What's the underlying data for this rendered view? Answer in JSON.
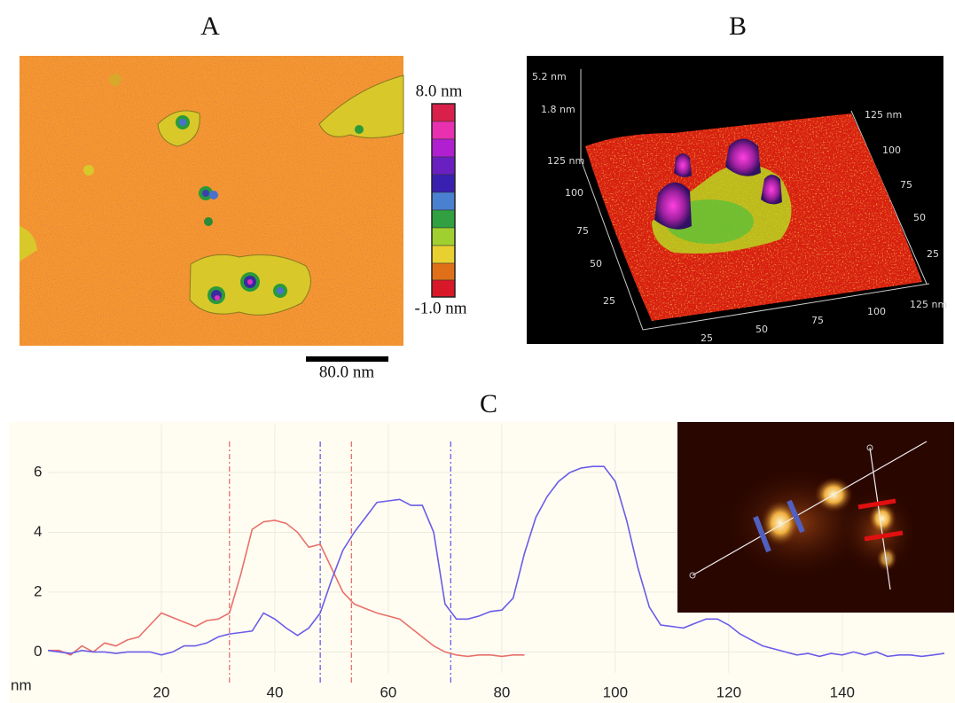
{
  "panels": {
    "a": {
      "label": "A",
      "colorbar_max": "8.0 nm",
      "colorbar_min": "-1.0 nm",
      "scale_bar": "80.0 nm"
    },
    "b": {
      "label": "B",
      "z_labels": [
        "5.2 nm",
        "1.8 nm"
      ],
      "left_labels": [
        "125 nm",
        "100",
        "75",
        "50",
        "25"
      ],
      "right_labels": [
        "125 nm",
        "100",
        "75",
        "50",
        "25"
      ],
      "bottom_labels": [
        "25",
        "50",
        "75",
        "100",
        "125 nm"
      ]
    },
    "c": {
      "label": "C"
    }
  },
  "chart_data": {
    "type": "line",
    "y_label": "nm",
    "xlim": [
      0,
      158
    ],
    "ylim": [
      -0.7,
      7.6
    ],
    "xticks": [
      20,
      40,
      60,
      80,
      100,
      120,
      140
    ],
    "yticks": [
      0,
      2,
      4,
      6
    ],
    "grid": true,
    "series": [
      {
        "color": "#e8706a",
        "x": [
          0,
          2,
          4,
          6,
          8,
          10,
          12,
          14,
          16,
          18,
          20,
          22,
          24,
          26,
          28,
          30,
          32,
          34,
          36,
          38,
          40,
          42,
          44,
          46,
          48,
          50,
          52,
          54,
          56,
          58,
          60,
          62,
          64,
          66,
          68,
          70,
          72,
          74,
          76,
          78,
          80,
          82,
          84
        ],
        "values": [
          0.05,
          0.05,
          -0.1,
          0.2,
          0,
          0.3,
          0.2,
          0.4,
          0.5,
          0.9,
          1.3,
          1.15,
          1.0,
          0.85,
          1.05,
          1.1,
          1.3,
          2.6,
          4.1,
          4.35,
          4.4,
          4.3,
          4.0,
          3.5,
          3.6,
          2.8,
          2.0,
          1.6,
          1.45,
          1.3,
          1.2,
          1.1,
          0.8,
          0.5,
          0.2,
          0,
          -0.1,
          -0.15,
          -0.1,
          -0.1,
          -0.15,
          -0.1,
          -0.1
        ]
      },
      {
        "color": "#6a5ce8",
        "x": [
          0,
          2,
          4,
          6,
          8,
          10,
          12,
          14,
          16,
          18,
          20,
          22,
          24,
          26,
          28,
          30,
          32,
          34,
          36,
          38,
          40,
          42,
          44,
          46,
          48,
          50,
          52,
          54,
          56,
          58,
          60,
          62,
          64,
          66,
          68,
          70,
          72,
          74,
          76,
          78,
          80,
          82,
          84,
          86,
          88,
          90,
          92,
          94,
          96,
          98,
          100,
          102,
          104,
          106,
          108,
          110,
          112,
          114,
          116,
          118,
          120,
          122,
          124,
          126,
          128,
          130,
          132,
          134,
          136,
          138,
          140,
          142,
          144,
          146,
          148,
          150,
          152,
          154,
          156,
          158
        ],
        "values": [
          0.05,
          0,
          -0.05,
          0.05,
          0,
          0,
          -0.05,
          0,
          0,
          0,
          -0.1,
          0,
          0.2,
          0.2,
          0.3,
          0.5,
          0.6,
          0.65,
          0.7,
          1.3,
          1.1,
          0.8,
          0.55,
          0.8,
          1.3,
          2.4,
          3.4,
          4.0,
          4.5,
          5.0,
          5.05,
          5.1,
          4.9,
          4.9,
          4.0,
          1.6,
          1.1,
          1.1,
          1.2,
          1.35,
          1.4,
          1.8,
          3.3,
          4.5,
          5.2,
          5.7,
          6.0,
          6.15,
          6.2,
          6.2,
          5.7,
          4.4,
          2.8,
          1.5,
          0.9,
          0.85,
          0.8,
          0.95,
          1.1,
          1.1,
          0.9,
          0.6,
          0.4,
          0.2,
          0.1,
          0,
          -0.1,
          -0.05,
          -0.15,
          -0.05,
          -0.1,
          0,
          -0.1,
          0,
          -0.15,
          -0.1,
          -0.1,
          -0.15,
          -0.1,
          -0.05
        ]
      }
    ],
    "vlines": [
      {
        "x": 32,
        "color": "#e8706a"
      },
      {
        "x": 53.5,
        "color": "#e8706a"
      },
      {
        "x": 48,
        "color": "#6a5ce8"
      },
      {
        "x": 71,
        "color": "#6a5ce8"
      }
    ]
  }
}
